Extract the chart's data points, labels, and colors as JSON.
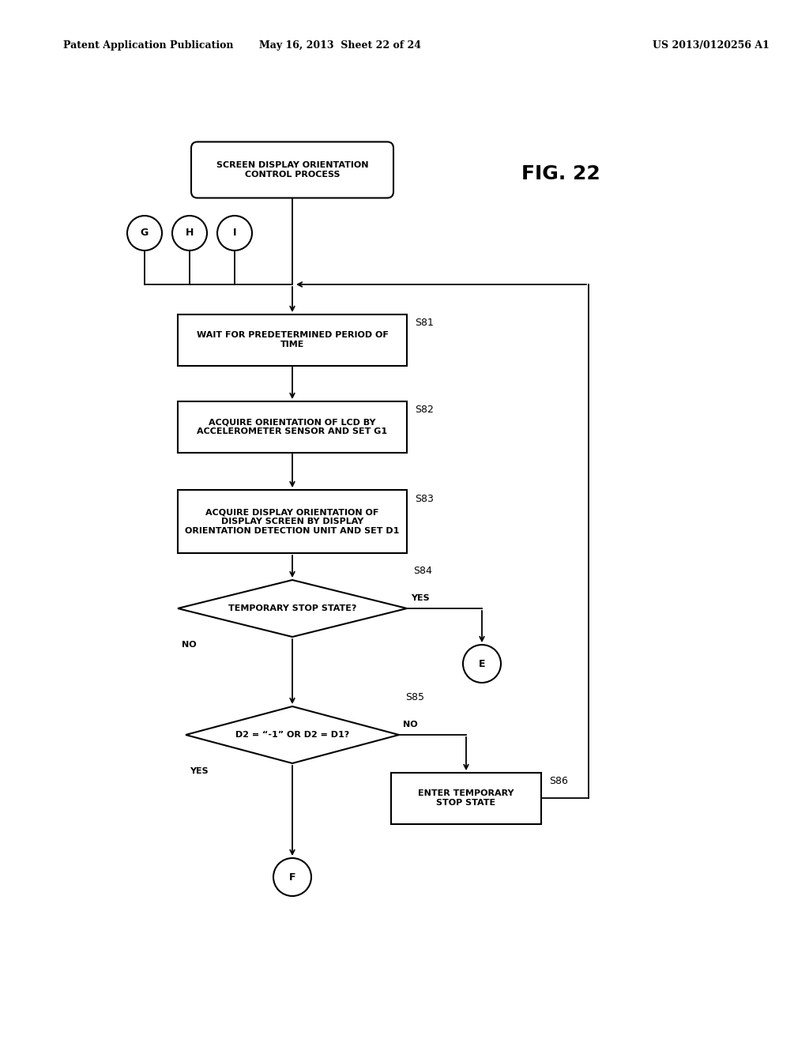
{
  "bg_color": "#ffffff",
  "header_left": "Patent Application Publication",
  "header_mid": "May 16, 2013  Sheet 22 of 24",
  "header_right": "US 2013/0120256 A1",
  "fig_label": "FIG. 22"
}
